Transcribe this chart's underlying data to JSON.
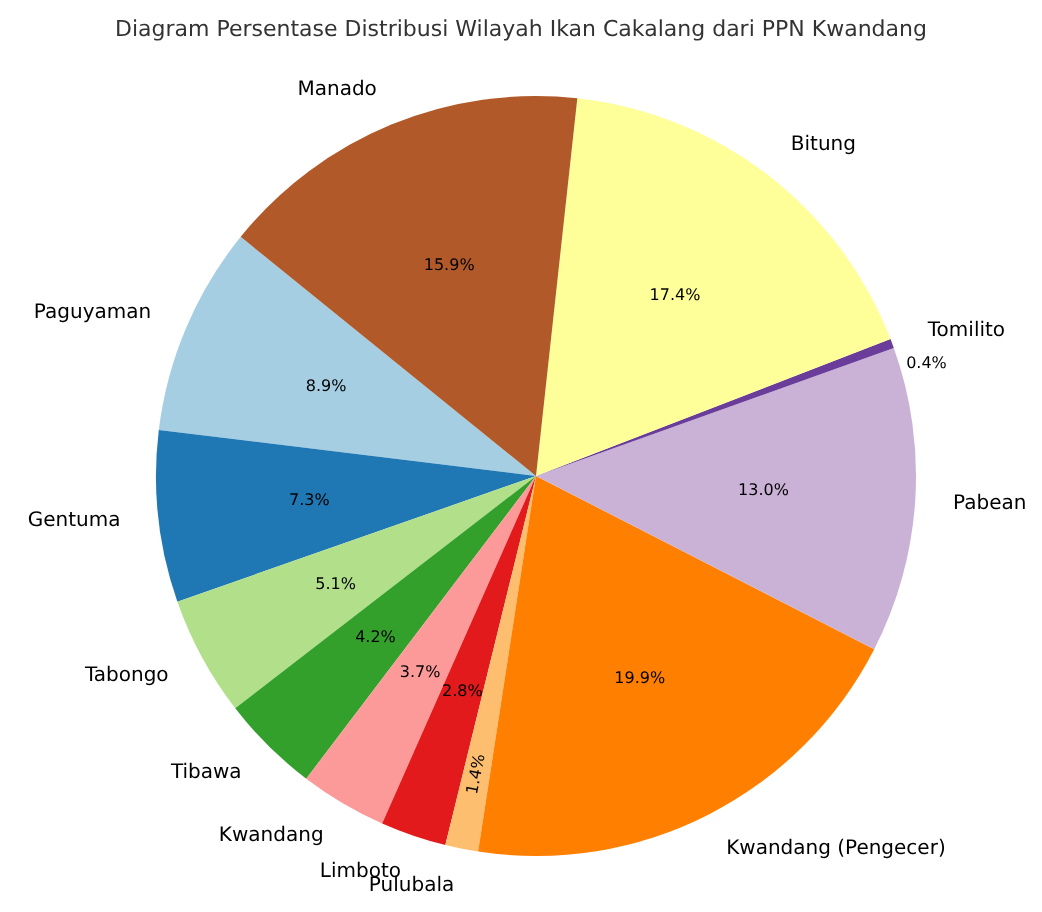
{
  "chart_data": {
    "type": "pie",
    "title": "Diagram Persentase Distribusi Wilayah Ikan Cakalang dari PPN Kwandang",
    "categories": [
      "Paguyaman",
      "Gentuma",
      "Tabongo",
      "Tibawa",
      "Kwandang",
      "Limboto",
      "Pulubala",
      "Kwandang (Pengecer)",
      "Pabean",
      "Tomilito",
      "Bitung",
      "Manado"
    ],
    "values": [
      8.9,
      7.3,
      5.1,
      4.2,
      3.7,
      2.8,
      1.4,
      19.9,
      13.0,
      0.4,
      17.4,
      15.9
    ],
    "colors": [
      "#a6cee3",
      "#1f78b4",
      "#b2df8a",
      "#33a02c",
      "#fb9a99",
      "#e31a1c",
      "#fdbf6f",
      "#ff7f00",
      "#cab2d6",
      "#6a3d9a",
      "#ffff99",
      "#b15928"
    ],
    "value_labels": [
      "8.9%",
      "7.3%",
      "5.1%",
      "4.2%",
      "3.7%",
      "2.8%",
      "1.4%",
      "19.9%",
      "13.0%",
      "0.4%",
      "17.4%",
      "15.9%"
    ]
  }
}
